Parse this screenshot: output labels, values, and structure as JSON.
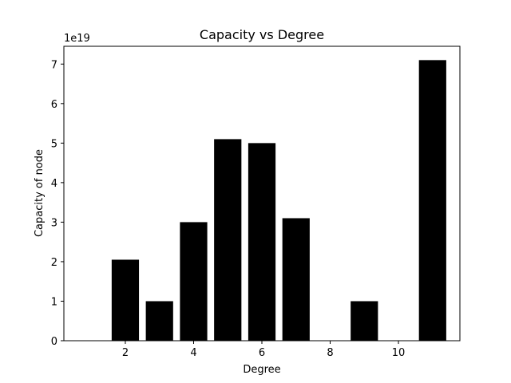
{
  "chart_data": {
    "type": "bar",
    "title": "Capacity vs Degree",
    "xlabel": "Degree",
    "ylabel": "Capacity of node",
    "y_offset_label": "1e19",
    "x": [
      2,
      3,
      4,
      5,
      6,
      7,
      9,
      11
    ],
    "values": [
      2.05e+19,
      1e+19,
      3e+19,
      5.1e+19,
      5e+19,
      3.1e+19,
      1e+19,
      7.1e+19
    ],
    "xlim": [
      0.2,
      11.8
    ],
    "ylim": [
      0,
      7.45e+19
    ],
    "xticks": [
      2,
      4,
      6,
      8,
      10
    ],
    "xtick_labels": [
      "2",
      "4",
      "6",
      "8",
      "10"
    ],
    "yticks": [
      0,
      1e+19,
      2e+19,
      3e+19,
      4e+19,
      5e+19,
      6e+19,
      7e+19
    ],
    "ytick_labels": [
      "0",
      "1",
      "2",
      "3",
      "4",
      "5",
      "6",
      "7"
    ],
    "bar_color": "#000000",
    "grid": false,
    "legend": "none"
  }
}
